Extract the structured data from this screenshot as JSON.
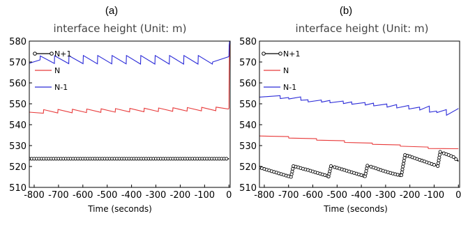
{
  "chart_data": [
    {
      "panel": "(a)",
      "type": "line",
      "title": "interface height (Unit: m)",
      "xlabel": "Time (seconds)",
      "ylabel": "",
      "xlim": [
        -820,
        5
      ],
      "ylim": [
        510,
        580
      ],
      "xticks": [
        -800,
        -700,
        -600,
        -500,
        -400,
        -300,
        -200,
        -100,
        0
      ],
      "xtick_labels": [
        "-800",
        "-700",
        "-600",
        "-500",
        "-400",
        "-300",
        "-200",
        "-100",
        "0"
      ],
      "yticks": [
        510,
        520,
        530,
        540,
        550,
        560,
        570,
        580
      ],
      "ytick_labels": [
        "510",
        "520",
        "530",
        "540",
        "550",
        "560",
        "570",
        "580"
      ],
      "legend_position": "top-left",
      "series": [
        {
          "name": "N+1",
          "color": "#000000",
          "marker": "circle",
          "x": [
            -820,
            -800,
            -780,
            -760,
            -740,
            -720,
            -700,
            -680,
            -660,
            -640,
            -620,
            -600,
            -580,
            -560,
            -540,
            -520,
            -500,
            -480,
            -460,
            -440,
            -420,
            -400,
            -380,
            -360,
            -340,
            -320,
            -300,
            -280,
            -260,
            -240,
            -220,
            -200,
            -180,
            -160,
            -140,
            -120,
            -100,
            -80,
            -60,
            -40,
            -20,
            0
          ],
          "y": [
            523.7,
            523.7,
            523.7,
            523.7,
            523.7,
            523.7,
            523.7,
            523.7,
            523.7,
            523.7,
            523.7,
            523.7,
            523.7,
            523.7,
            523.7,
            523.7,
            523.7,
            523.7,
            523.7,
            523.7,
            523.7,
            523.7,
            523.7,
            523.7,
            523.7,
            523.7,
            523.7,
            523.7,
            523.7,
            523.7,
            523.7,
            523.7,
            523.7,
            523.7,
            523.7,
            523.7,
            523.7,
            523.7,
            523.7,
            523.7,
            523.7,
            523.7
          ]
        },
        {
          "name": "N",
          "color": "#e83a3a",
          "x": [
            -820,
            -762,
            -761,
            -703,
            -702,
            -644,
            -643,
            -585,
            -584,
            -526,
            -525,
            -467,
            -466,
            -408,
            -407,
            -349,
            -348,
            -290,
            -289,
            -231,
            -230,
            -172,
            -171,
            -113,
            -112,
            -54,
            -53,
            -2,
            0,
            1,
            3
          ],
          "y": [
            546.0,
            545.5,
            547.2,
            545.6,
            547.3,
            545.7,
            547.4,
            545.8,
            547.5,
            545.9,
            547.6,
            546.0,
            547.7,
            546.1,
            547.8,
            546.2,
            547.9,
            546.3,
            548.0,
            546.4,
            548.1,
            546.5,
            548.2,
            546.6,
            548.3,
            546.7,
            548.4,
            547.5,
            548.0,
            565.0,
            580.0
          ]
        },
        {
          "name": "N-1",
          "color": "#2a2ad8",
          "x": [
            -820,
            -776,
            -775,
            -717,
            -716,
            -658,
            -657,
            -599,
            -598,
            -540,
            -539,
            -481,
            -480,
            -422,
            -421,
            -363,
            -362,
            -304,
            -303,
            -245,
            -244,
            -186,
            -185,
            -127,
            -126,
            -68,
            -67,
            -2,
            0,
            1,
            3
          ],
          "y": [
            569.4,
            571.0,
            572.9,
            569.3,
            573.0,
            569.2,
            573.0,
            569.2,
            573.1,
            569.1,
            573.1,
            569.1,
            573.1,
            569.1,
            573.1,
            569.0,
            573.1,
            569.0,
            573.1,
            569.0,
            573.1,
            569.0,
            573.1,
            569.0,
            573.1,
            569.0,
            570.0,
            572.5,
            572.8,
            578.0,
            580.0
          ]
        }
      ]
    },
    {
      "panel": "(b)",
      "type": "line",
      "title": "interface height (Unit: m)",
      "xlabel": "Time (seconds)",
      "ylabel": "",
      "xlim": [
        -820,
        5
      ],
      "ylim": [
        510,
        580
      ],
      "xticks": [
        -800,
        -700,
        -600,
        -500,
        -400,
        -300,
        -200,
        -100,
        0
      ],
      "xtick_labels": [
        "-800",
        "-700",
        "-600",
        "-500",
        "-400",
        "-300",
        "-200",
        "-100",
        "0"
      ],
      "yticks": [
        510,
        520,
        530,
        540,
        550,
        560,
        570,
        580
      ],
      "ytick_labels": [
        "510",
        "520",
        "530",
        "540",
        "550",
        "560",
        "570",
        "580"
      ],
      "legend_position": "top-left",
      "series": [
        {
          "name": "N+1",
          "color": "#000000",
          "marker": "circle",
          "x": [
            -820,
            -800,
            -780,
            -760,
            -740,
            -720,
            -700,
            -690,
            -680,
            -670,
            -660,
            -640,
            -620,
            -600,
            -580,
            -560,
            -540,
            -535,
            -525,
            -510,
            -490,
            -470,
            -450,
            -430,
            -410,
            -390,
            -385,
            -375,
            -360,
            -340,
            -320,
            -300,
            -280,
            -260,
            -240,
            -235,
            -220,
            -200,
            -180,
            -160,
            -140,
            -120,
            -100,
            -85,
            -75,
            -60,
            -40,
            -20,
            0
          ],
          "y": [
            519.5,
            518.8,
            518.1,
            517.4,
            516.7,
            516.0,
            515.3,
            515.0,
            520.2,
            519.9,
            519.6,
            518.9,
            518.3,
            517.6,
            516.9,
            516.2,
            515.5,
            515.2,
            520.2,
            519.7,
            519.0,
            518.3,
            517.6,
            516.9,
            516.2,
            515.5,
            515.3,
            520.4,
            519.9,
            519.1,
            518.3,
            517.6,
            516.9,
            516.3,
            515.8,
            515.8,
            525.5,
            524.8,
            524.0,
            523.2,
            522.4,
            521.6,
            520.8,
            520.2,
            527.0,
            526.3,
            525.5,
            524.5,
            522.5
          ]
        },
        {
          "name": "N",
          "color": "#e83a3a",
          "x": [
            -820,
            -700,
            -699,
            -585,
            -584,
            -470,
            -469,
            -355,
            -354,
            -240,
            -239,
            -125,
            -124,
            -2,
            0
          ],
          "y": [
            534.6,
            534.3,
            533.6,
            533.3,
            532.6,
            532.3,
            531.5,
            531.2,
            530.6,
            530.3,
            529.7,
            529.3,
            528.6,
            528.5,
            528.5
          ]
        },
        {
          "name": "N-1",
          "color": "#2a2ad8",
          "x": [
            -820,
            -735,
            -734,
            -700,
            -699,
            -650,
            -649,
            -620,
            -619,
            -565,
            -564,
            -530,
            -529,
            -475,
            -474,
            -440,
            -439,
            -385,
            -384,
            -350,
            -349,
            -295,
            -294,
            -255,
            -254,
            -205,
            -204,
            -160,
            -159,
            -120,
            -119,
            -90,
            -89,
            -50,
            -49,
            -2,
            0
          ],
          "y": [
            553.2,
            553.9,
            552.5,
            553.0,
            552.3,
            553.3,
            551.7,
            551.9,
            550.9,
            551.8,
            550.8,
            551.6,
            550.5,
            551.3,
            550.1,
            550.9,
            549.8,
            550.6,
            549.4,
            550.3,
            549.0,
            549.9,
            548.4,
            549.6,
            548.0,
            549.2,
            547.5,
            548.4,
            547.0,
            548.9,
            546.0,
            546.5,
            545.8,
            547.2,
            544.5,
            547.6,
            547.8
          ]
        }
      ]
    }
  ]
}
